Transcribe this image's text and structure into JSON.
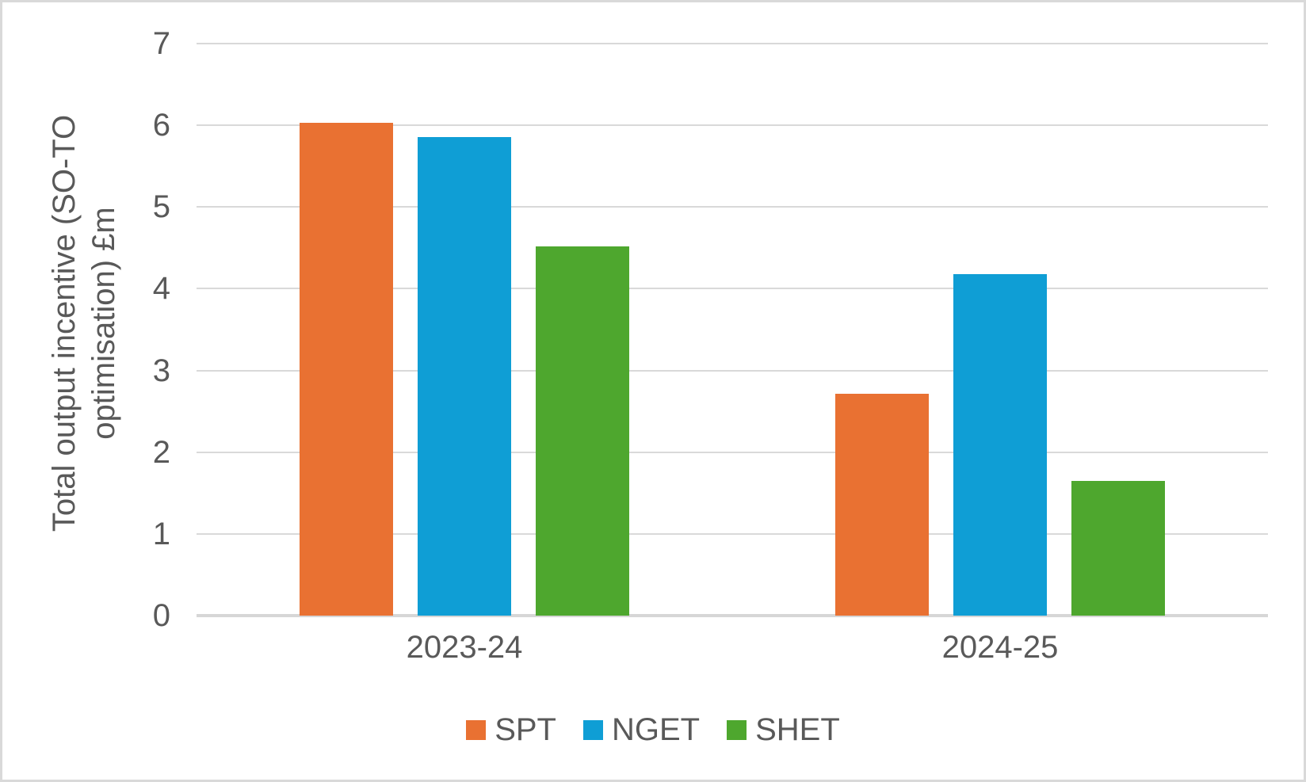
{
  "chart_data": {
    "type": "bar",
    "title": "",
    "categories": [
      "2023-24",
      "2024-25"
    ],
    "series": [
      {
        "name": "SPT",
        "color": "#E97132",
        "values": [
          6.03,
          2.71
        ]
      },
      {
        "name": "NGET",
        "color": "#0F9ED5",
        "values": [
          5.86,
          4.18
        ]
      },
      {
        "name": "SHET",
        "color": "#4EA72E",
        "values": [
          4.52,
          1.65
        ]
      }
    ],
    "xlabel": "",
    "ylabel": "Total output incentive (SO-TO optimisation) £m",
    "ylabel_lines": [
      "Total output incentive (SO-TO",
      "optimisation) £m"
    ],
    "ylim": [
      0,
      7
    ],
    "yticks": [
      0,
      1,
      2,
      3,
      4,
      5,
      6,
      7
    ],
    "grid": "horizontal",
    "legend_position": "bottom"
  },
  "style": {
    "plot_bg": "#FFFFFF",
    "grid_color": "#D9D9D9",
    "axis_line_color": "#D6D6D6",
    "text_color": "#595959",
    "border_color": "#D9D9D9"
  }
}
